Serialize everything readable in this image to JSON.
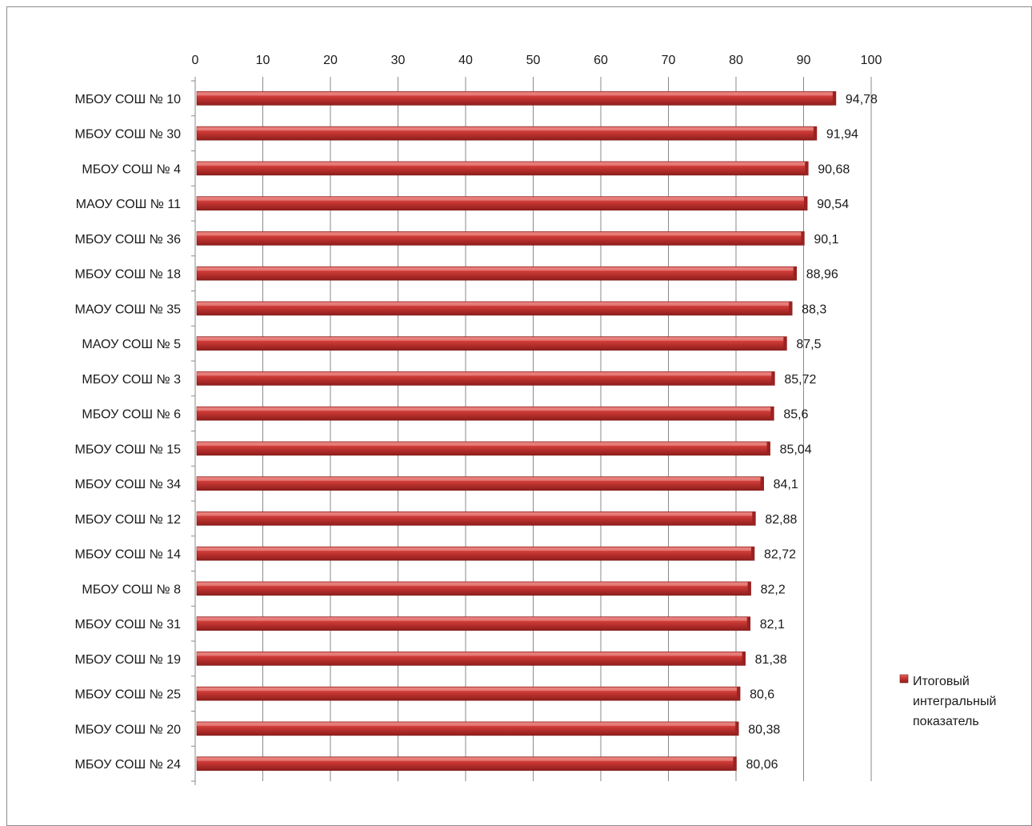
{
  "chart_data": {
    "type": "bar",
    "orientation": "horizontal",
    "categories": [
      "МБОУ СОШ № 10",
      "МБОУ СОШ № 30",
      "МБОУ СОШ № 4",
      "МАОУ СОШ № 11",
      "МБОУ СОШ № 36",
      "МБОУ СОШ № 18",
      "МАОУ СОШ № 35",
      "МАОУ СОШ № 5",
      "МБОУ СОШ № 3",
      "МБОУ СОШ № 6",
      "МБОУ СОШ № 15",
      "МБОУ СОШ № 34",
      "МБОУ СОШ № 12",
      "МБОУ СОШ № 14",
      "МБОУ СОШ № 8",
      "МБОУ СОШ № 31",
      "МБОУ СОШ № 19",
      "МБОУ СОШ № 25",
      "МБОУ СОШ № 20",
      "МБОУ СОШ № 24"
    ],
    "series": [
      {
        "name": "Итоговый интегральный показатель",
        "color": "#c0312f",
        "values": [
          94.78,
          91.94,
          90.68,
          90.54,
          90.1,
          88.96,
          88.3,
          87.5,
          85.72,
          85.6,
          85.04,
          84.1,
          82.88,
          82.72,
          82.2,
          82.1,
          81.38,
          80.6,
          80.38,
          80.06
        ]
      }
    ],
    "data_labels": [
      "94,78",
      "91,94",
      "90,68",
      "90,54",
      "90,1",
      "88,96",
      "88,3",
      "87,5",
      "85,72",
      "85,6",
      "85,04",
      "84,1",
      "82,88",
      "82,72",
      "82,2",
      "82,1",
      "81,38",
      "80,6",
      "80,38",
      "80,06"
    ],
    "xlim": [
      0,
      100
    ],
    "x_ticks": [
      "0",
      "10",
      "20",
      "30",
      "40",
      "50",
      "60",
      "70",
      "80",
      "90",
      "100"
    ],
    "x_axis_position": "top",
    "grid": true,
    "legend": {
      "position": "right",
      "lines": [
        "Итоговый",
        "интегральный",
        "показатель"
      ]
    }
  }
}
